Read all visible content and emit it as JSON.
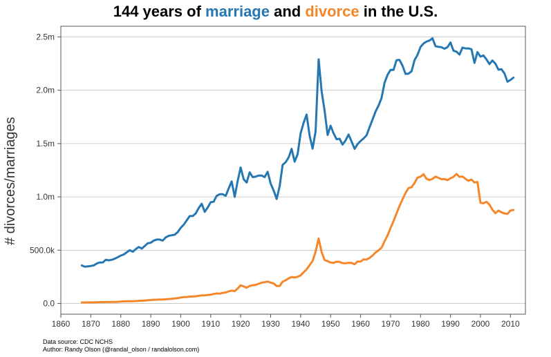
{
  "title": {
    "part1": "144 years of ",
    "marriage_word": "marriage",
    "part2": " and ",
    "divorce_word": "divorce",
    "part3": " in the U.S."
  },
  "footer": {
    "source": "Data source: CDC NCHS",
    "author": "Author: Randy Olson (@randal_olson / randalolson.com)"
  },
  "colors": {
    "marriage": "#2577b3",
    "divorce": "#f5862a",
    "grid": "#cccccc",
    "axis": "#555555"
  },
  "chart_data": {
    "type": "line",
    "title": "144 years of marriage and divorce in the U.S.",
    "xlabel": "",
    "ylabel": "# divorces/marriages",
    "xlim": [
      1860,
      2015
    ],
    "ylim": [
      -100000,
      2600000
    ],
    "x_ticks": [
      1860,
      1870,
      1880,
      1890,
      1900,
      1910,
      1920,
      1930,
      1940,
      1950,
      1960,
      1970,
      1980,
      1990,
      2000,
      2010
    ],
    "y_ticks": [
      {
        "value": 0,
        "label": "0.0"
      },
      {
        "value": 500000,
        "label": "500.0k"
      },
      {
        "value": 1000000,
        "label": "1.0m"
      },
      {
        "value": 1500000,
        "label": "1.5m"
      },
      {
        "value": 2000000,
        "label": "2.0m"
      },
      {
        "value": 2500000,
        "label": "2.5m"
      }
    ],
    "grid": "horizontal",
    "series": [
      {
        "name": "marriage",
        "color": "#2577b3",
        "points": [
          [
            1867,
            357000
          ],
          [
            1868,
            345000
          ],
          [
            1869,
            348000
          ],
          [
            1870,
            352000
          ],
          [
            1871,
            358000
          ],
          [
            1872,
            375000
          ],
          [
            1873,
            385000
          ],
          [
            1874,
            385000
          ],
          [
            1875,
            410000
          ],
          [
            1876,
            405000
          ],
          [
            1877,
            410000
          ],
          [
            1878,
            420000
          ],
          [
            1879,
            435000
          ],
          [
            1880,
            450000
          ],
          [
            1881,
            460000
          ],
          [
            1882,
            480000
          ],
          [
            1883,
            500000
          ],
          [
            1884,
            485000
          ],
          [
            1885,
            510000
          ],
          [
            1886,
            530000
          ],
          [
            1887,
            515000
          ],
          [
            1888,
            540000
          ],
          [
            1889,
            565000
          ],
          [
            1890,
            570000
          ],
          [
            1891,
            590000
          ],
          [
            1892,
            600000
          ],
          [
            1893,
            600000
          ],
          [
            1894,
            590000
          ],
          [
            1895,
            620000
          ],
          [
            1896,
            635000
          ],
          [
            1897,
            640000
          ],
          [
            1898,
            645000
          ],
          [
            1899,
            670000
          ],
          [
            1900,
            710000
          ],
          [
            1901,
            740000
          ],
          [
            1902,
            780000
          ],
          [
            1903,
            820000
          ],
          [
            1904,
            820000
          ],
          [
            1905,
            845000
          ],
          [
            1906,
            895000
          ],
          [
            1907,
            935000
          ],
          [
            1908,
            860000
          ],
          [
            1909,
            900000
          ],
          [
            1910,
            950000
          ],
          [
            1911,
            955000
          ],
          [
            1912,
            1010000
          ],
          [
            1913,
            1025000
          ],
          [
            1914,
            1025000
          ],
          [
            1915,
            1010000
          ],
          [
            1916,
            1080000
          ],
          [
            1917,
            1145000
          ],
          [
            1918,
            1000000
          ],
          [
            1919,
            1150000
          ],
          [
            1920,
            1275000
          ],
          [
            1921,
            1165000
          ],
          [
            1922,
            1135000
          ],
          [
            1923,
            1230000
          ],
          [
            1924,
            1185000
          ],
          [
            1925,
            1190000
          ],
          [
            1926,
            1200000
          ],
          [
            1927,
            1200000
          ],
          [
            1928,
            1185000
          ],
          [
            1929,
            1235000
          ],
          [
            1930,
            1125000
          ],
          [
            1931,
            1060000
          ],
          [
            1932,
            980000
          ],
          [
            1933,
            1100000
          ],
          [
            1934,
            1300000
          ],
          [
            1935,
            1325000
          ],
          [
            1936,
            1370000
          ],
          [
            1937,
            1450000
          ],
          [
            1938,
            1330000
          ],
          [
            1939,
            1400000
          ],
          [
            1940,
            1595000
          ],
          [
            1941,
            1695000
          ],
          [
            1942,
            1772000
          ],
          [
            1943,
            1575000
          ],
          [
            1944,
            1452000
          ],
          [
            1945,
            1613000
          ],
          [
            1946,
            2290000
          ],
          [
            1947,
            1990000
          ],
          [
            1948,
            1810000
          ],
          [
            1949,
            1580000
          ],
          [
            1950,
            1667000
          ],
          [
            1951,
            1595000
          ],
          [
            1952,
            1540000
          ],
          [
            1953,
            1545000
          ],
          [
            1954,
            1490000
          ],
          [
            1955,
            1530000
          ],
          [
            1956,
            1585000
          ],
          [
            1957,
            1520000
          ],
          [
            1958,
            1450000
          ],
          [
            1959,
            1495000
          ],
          [
            1960,
            1523000
          ],
          [
            1961,
            1548000
          ],
          [
            1962,
            1577000
          ],
          [
            1963,
            1654000
          ],
          [
            1964,
            1725000
          ],
          [
            1965,
            1800000
          ],
          [
            1966,
            1857000
          ],
          [
            1967,
            1927000
          ],
          [
            1968,
            2069000
          ],
          [
            1969,
            2145000
          ],
          [
            1970,
            2190000
          ],
          [
            1971,
            2190000
          ],
          [
            1972,
            2282000
          ],
          [
            1973,
            2284000
          ],
          [
            1974,
            2230000
          ],
          [
            1975,
            2153000
          ],
          [
            1976,
            2155000
          ],
          [
            1977,
            2178000
          ],
          [
            1978,
            2282000
          ],
          [
            1979,
            2331000
          ],
          [
            1980,
            2406000
          ],
          [
            1981,
            2438000
          ],
          [
            1982,
            2456000
          ],
          [
            1983,
            2466000
          ],
          [
            1984,
            2487000
          ],
          [
            1985,
            2413000
          ],
          [
            1986,
            2407000
          ],
          [
            1987,
            2403000
          ],
          [
            1988,
            2389000
          ],
          [
            1989,
            2404000
          ],
          [
            1990,
            2448000
          ],
          [
            1991,
            2371000
          ],
          [
            1992,
            2362000
          ],
          [
            1993,
            2334000
          ],
          [
            1994,
            2400000
          ],
          [
            1995,
            2392000
          ],
          [
            1996,
            2392000
          ],
          [
            1997,
            2384000
          ],
          [
            1998,
            2256000
          ],
          [
            1999,
            2358000
          ],
          [
            2000,
            2315000
          ],
          [
            2001,
            2326000
          ],
          [
            2002,
            2290000
          ],
          [
            2003,
            2245000
          ],
          [
            2004,
            2279000
          ],
          [
            2005,
            2249000
          ],
          [
            2006,
            2193000
          ],
          [
            2007,
            2197000
          ],
          [
            2008,
            2157000
          ],
          [
            2009,
            2080000
          ],
          [
            2010,
            2096000
          ],
          [
            2011,
            2118000
          ]
        ]
      },
      {
        "name": "divorce",
        "color": "#f5862a",
        "points": [
          [
            1867,
            10000
          ],
          [
            1868,
            10000
          ],
          [
            1869,
            11000
          ],
          [
            1870,
            11000
          ],
          [
            1871,
            11000
          ],
          [
            1872,
            12000
          ],
          [
            1873,
            13000
          ],
          [
            1874,
            13000
          ],
          [
            1875,
            14000
          ],
          [
            1876,
            14000
          ],
          [
            1877,
            15000
          ],
          [
            1878,
            15000
          ],
          [
            1879,
            16000
          ],
          [
            1880,
            18000
          ],
          [
            1881,
            20000
          ],
          [
            1882,
            21000
          ],
          [
            1883,
            22000
          ],
          [
            1884,
            22000
          ],
          [
            1885,
            23000
          ],
          [
            1886,
            25000
          ],
          [
            1887,
            27000
          ],
          [
            1888,
            28000
          ],
          [
            1889,
            31000
          ],
          [
            1890,
            33000
          ],
          [
            1891,
            35000
          ],
          [
            1892,
            36000
          ],
          [
            1893,
            37000
          ],
          [
            1894,
            38000
          ],
          [
            1895,
            40000
          ],
          [
            1896,
            42000
          ],
          [
            1897,
            44000
          ],
          [
            1898,
            47000
          ],
          [
            1899,
            51000
          ],
          [
            1900,
            56000
          ],
          [
            1901,
            60000
          ],
          [
            1902,
            61000
          ],
          [
            1903,
            65000
          ],
          [
            1904,
            66000
          ],
          [
            1905,
            68000
          ],
          [
            1906,
            72000
          ],
          [
            1907,
            77000
          ],
          [
            1908,
            76000
          ],
          [
            1909,
            80000
          ],
          [
            1910,
            83000
          ],
          [
            1911,
            90000
          ],
          [
            1912,
            94000
          ],
          [
            1913,
            92000
          ],
          [
            1914,
            100000
          ],
          [
            1915,
            104000
          ],
          [
            1916,
            114000
          ],
          [
            1917,
            121000
          ],
          [
            1918,
            116000
          ],
          [
            1919,
            141000
          ],
          [
            1920,
            171000
          ],
          [
            1921,
            160000
          ],
          [
            1922,
            148000
          ],
          [
            1923,
            165000
          ],
          [
            1924,
            171000
          ],
          [
            1925,
            175000
          ],
          [
            1926,
            185000
          ],
          [
            1927,
            196000
          ],
          [
            1928,
            200000
          ],
          [
            1929,
            206000
          ],
          [
            1930,
            196000
          ],
          [
            1931,
            188000
          ],
          [
            1932,
            164000
          ],
          [
            1933,
            165000
          ],
          [
            1934,
            204000
          ],
          [
            1935,
            218000
          ],
          [
            1936,
            236000
          ],
          [
            1937,
            249000
          ],
          [
            1938,
            244000
          ],
          [
            1939,
            251000
          ],
          [
            1940,
            264000
          ],
          [
            1941,
            293000
          ],
          [
            1942,
            321000
          ],
          [
            1943,
            359000
          ],
          [
            1944,
            400000
          ],
          [
            1945,
            485000
          ],
          [
            1946,
            610000
          ],
          [
            1947,
            483000
          ],
          [
            1948,
            408000
          ],
          [
            1949,
            397000
          ],
          [
            1950,
            385000
          ],
          [
            1951,
            381000
          ],
          [
            1952,
            392000
          ],
          [
            1953,
            390000
          ],
          [
            1954,
            379000
          ],
          [
            1955,
            377000
          ],
          [
            1956,
            382000
          ],
          [
            1957,
            381000
          ],
          [
            1958,
            368000
          ],
          [
            1959,
            395000
          ],
          [
            1960,
            393000
          ],
          [
            1961,
            414000
          ],
          [
            1962,
            413000
          ],
          [
            1963,
            428000
          ],
          [
            1964,
            450000
          ],
          [
            1965,
            479000
          ],
          [
            1966,
            499000
          ],
          [
            1967,
            523000
          ],
          [
            1968,
            584000
          ],
          [
            1969,
            639000
          ],
          [
            1970,
            708000
          ],
          [
            1971,
            773000
          ],
          [
            1972,
            845000
          ],
          [
            1973,
            915000
          ],
          [
            1974,
            977000
          ],
          [
            1975,
            1036000
          ],
          [
            1976,
            1083000
          ],
          [
            1977,
            1091000
          ],
          [
            1978,
            1130000
          ],
          [
            1979,
            1181000
          ],
          [
            1980,
            1189000
          ],
          [
            1981,
            1213000
          ],
          [
            1982,
            1170000
          ],
          [
            1983,
            1158000
          ],
          [
            1984,
            1169000
          ],
          [
            1985,
            1190000
          ],
          [
            1986,
            1178000
          ],
          [
            1987,
            1166000
          ],
          [
            1988,
            1167000
          ],
          [
            1989,
            1157000
          ],
          [
            1990,
            1175000
          ],
          [
            1991,
            1187000
          ],
          [
            1992,
            1215000
          ],
          [
            1993,
            1187000
          ],
          [
            1994,
            1191000
          ],
          [
            1995,
            1169000
          ],
          [
            1996,
            1150000
          ],
          [
            1997,
            1163000
          ],
          [
            1998,
            1135000
          ],
          [
            1999,
            1140000
          ],
          [
            2000,
            944000
          ],
          [
            2001,
            940000
          ],
          [
            2002,
            955000
          ],
          [
            2003,
            927000
          ],
          [
            2004,
            879000
          ],
          [
            2005,
            847000
          ],
          [
            2006,
            872000
          ],
          [
            2007,
            856000
          ],
          [
            2008,
            844000
          ],
          [
            2009,
            840000
          ],
          [
            2010,
            872000
          ],
          [
            2011,
            877000
          ]
        ]
      }
    ]
  }
}
